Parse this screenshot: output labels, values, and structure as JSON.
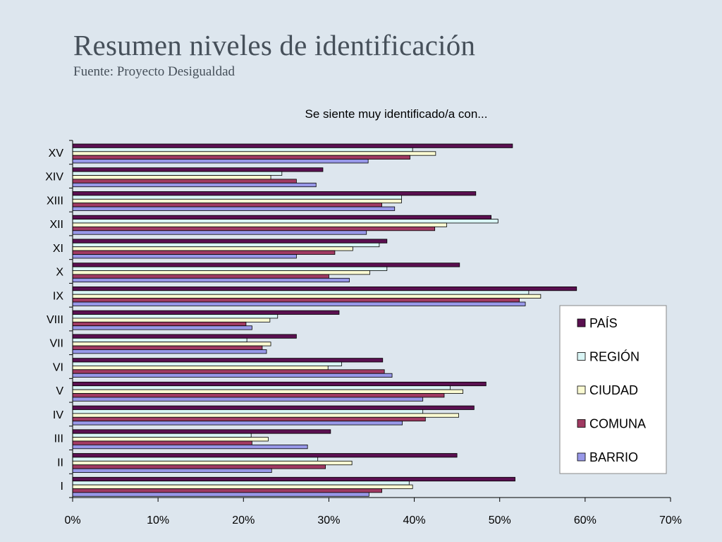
{
  "slide": {
    "title": "Resumen niveles de identificación",
    "subtitle": "Fuente: Proyecto Desigualdad"
  },
  "chart_data": {
    "type": "bar",
    "orientation": "horizontal",
    "title": "Se siente muy identificado/a con...",
    "categories": [
      "XV",
      "XIV",
      "XIII",
      "XII",
      "XI",
      "X",
      "IX",
      "VIII",
      "VII",
      "VI",
      "V",
      "IV",
      "III",
      "II",
      "I"
    ],
    "series": [
      {
        "name": "PAÍS",
        "color": "#5a1050",
        "values": [
          51.5,
          29.3,
          47.2,
          49.0,
          36.8,
          45.3,
          59.0,
          31.2,
          26.2,
          36.3,
          48.4,
          47.0,
          30.2,
          45.0,
          51.8
        ]
      },
      {
        "name": "REGIÓN",
        "color": "#d9f5f5",
        "values": [
          39.8,
          24.5,
          38.5,
          49.8,
          35.9,
          36.8,
          53.4,
          24.0,
          20.4,
          31.5,
          44.2,
          41.0,
          20.9,
          28.7,
          39.4
        ]
      },
      {
        "name": "CIUDAD",
        "color": "#fafad2",
        "values": [
          42.5,
          23.2,
          38.5,
          43.8,
          32.8,
          34.8,
          54.8,
          23.1,
          23.2,
          29.9,
          45.7,
          45.2,
          22.9,
          32.7,
          39.8
        ]
      },
      {
        "name": "COMUNA",
        "color": "#a03a62",
        "values": [
          39.5,
          26.2,
          36.2,
          42.4,
          30.7,
          30.0,
          52.3,
          20.3,
          22.2,
          36.5,
          43.5,
          41.3,
          21.0,
          29.6,
          36.2
        ]
      },
      {
        "name": "BARRIO",
        "color": "#9898e8",
        "values": [
          34.6,
          28.5,
          37.7,
          34.4,
          26.2,
          32.4,
          53.0,
          21.0,
          22.7,
          37.4,
          41.0,
          38.6,
          27.5,
          23.3,
          34.7
        ]
      }
    ],
    "xlim": [
      0,
      70
    ],
    "xticks": [
      "0%",
      "10%",
      "20%",
      "30%",
      "40%",
      "50%",
      "60%",
      "70%"
    ],
    "grid": false,
    "legend_position": "right"
  }
}
